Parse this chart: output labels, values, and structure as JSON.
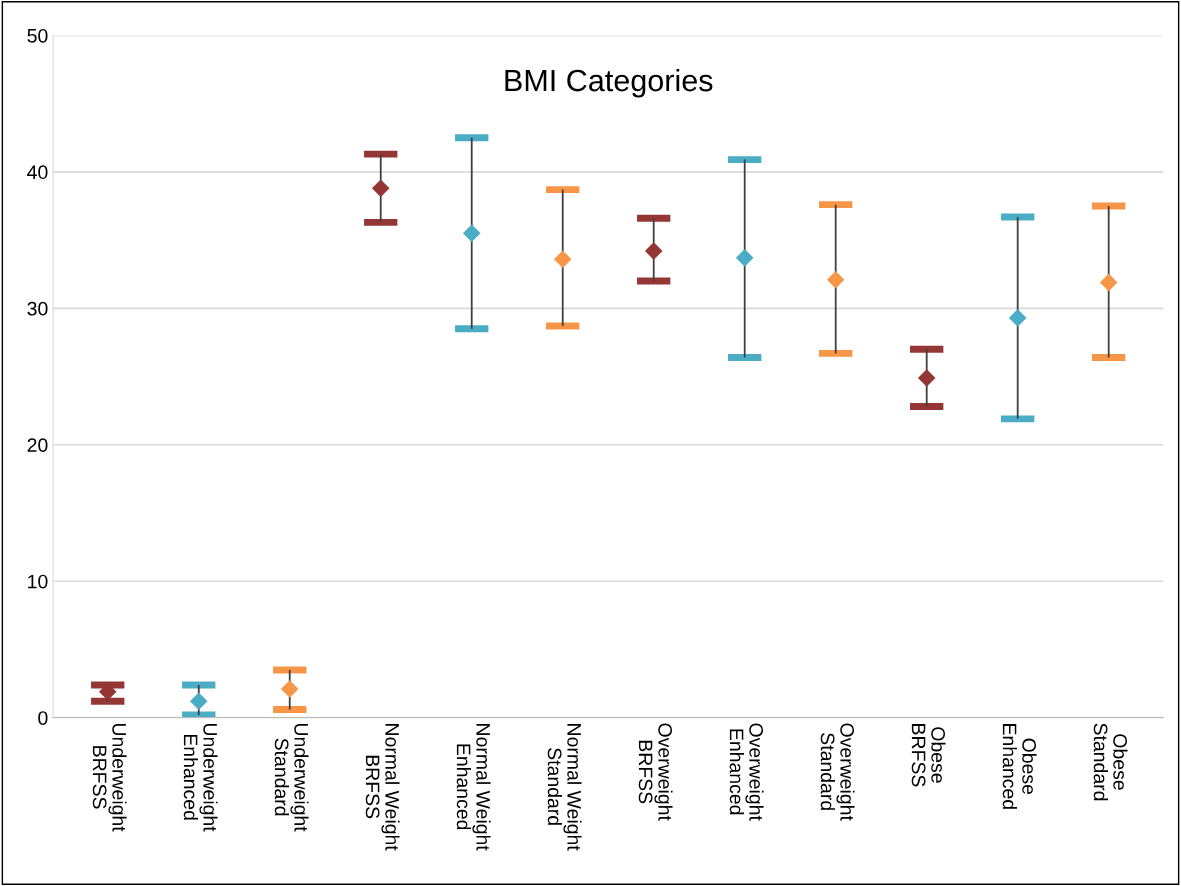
{
  "chart_data": {
    "type": "scatter",
    "title": "BMI Categories",
    "categories": [
      "Underweight\nBRFSS",
      "Underweight\nEnhanced",
      "Underweight\nStandard",
      "Normal Weight\nBRFSS",
      "Normal Weight\nEnhanced",
      "Normal Weight\nStandard",
      "Overweight\nBRFSS",
      "Overweight\nEnhanced",
      "Overweight\nStandard",
      "Obese\nBRFSS",
      "Obese\nEnhanced",
      "Obese\nStandard"
    ],
    "values": [
      1.9,
      1.2,
      2.1,
      38.8,
      35.5,
      33.6,
      34.2,
      33.7,
      32.1,
      24.9,
      29.3,
      31.9
    ],
    "errors": [
      [
        1.2,
        2.4
      ],
      [
        0.2,
        2.4
      ],
      [
        0.6,
        3.5
      ],
      [
        36.3,
        41.3
      ],
      [
        28.5,
        42.5
      ],
      [
        28.7,
        38.7
      ],
      [
        32.0,
        36.6
      ],
      [
        26.4,
        40.9
      ],
      [
        26.7,
        37.6
      ],
      [
        22.8,
        27.0
      ],
      [
        21.9,
        36.7
      ],
      [
        26.4,
        37.5
      ]
    ],
    "colors": [
      "#943634",
      "#4bacc6",
      "#f79646",
      "#943634",
      "#4bacc6",
      "#f79646",
      "#943634",
      "#4bacc6",
      "#f79646",
      "#943634",
      "#4bacc6",
      "#f79646"
    ],
    "marker": "diamond",
    "ylim": [
      0,
      50
    ],
    "yticks": [
      0,
      10,
      20,
      30,
      40,
      50
    ],
    "grid": "y"
  }
}
